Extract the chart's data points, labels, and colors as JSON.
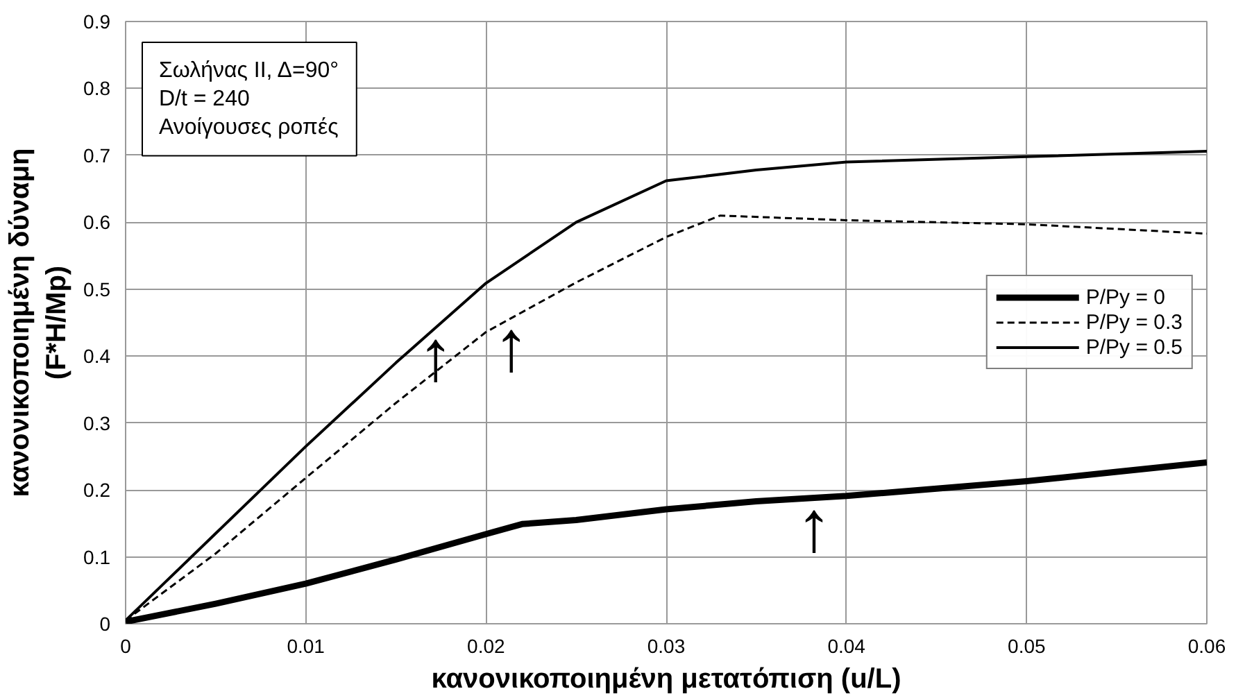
{
  "chart_data": {
    "type": "line",
    "xlabel": "κανονικοποιημένη μετατόπιση (u/L)",
    "ylabel": "κανονικοποιημένη δύναμη\n(F*H/Mp)",
    "annotations": [
      "Σωλήνας ΙΙ, Δ=90°\nD/t = 240\nΑνοίγουσες ροπές",
      {
        "text": "↑",
        "x": 0.0172,
        "y": 0.443
      },
      {
        "text": "↑",
        "x": 0.0214,
        "y": 0.457
      },
      {
        "text": "↑",
        "x": 0.0382,
        "y": 0.188
      }
    ],
    "series": [
      {
        "name": "P/Py = 0",
        "color": "#000000",
        "line_style": "solid",
        "x": [
          0,
          0.005,
          0.01,
          0.015,
          0.02,
          0.022,
          0.025,
          0.03,
          0.035,
          0.04,
          0.045,
          0.05,
          0.055,
          0.06
        ],
        "values": [
          0.003,
          0.03,
          0.06,
          0.096,
          0.134,
          0.149,
          0.155,
          0.171,
          0.183,
          0.191,
          0.202,
          0.213,
          0.227,
          0.241
        ]
      },
      {
        "name": "P/Py = 0.3",
        "color": "#000000",
        "line_style": "dashed",
        "x": [
          0,
          0.005,
          0.01,
          0.015,
          0.02,
          0.025,
          0.03,
          0.033,
          0.04,
          0.05,
          0.06
        ],
        "values": [
          0.005,
          0.105,
          0.218,
          0.33,
          0.436,
          0.51,
          0.578,
          0.61,
          0.603,
          0.597,
          0.583
        ]
      },
      {
        "name": "P/Py = 0.5",
        "color": "#000000",
        "line_style": "solid",
        "x": [
          0,
          0.005,
          0.01,
          0.015,
          0.02,
          0.025,
          0.03,
          0.035,
          0.04,
          0.05,
          0.06
        ],
        "values": [
          0.005,
          0.135,
          0.265,
          0.39,
          0.509,
          0.6,
          0.662,
          0.678,
          0.69,
          0.698,
          0.706
        ]
      }
    ],
    "xlim": [
      0,
      0.06
    ],
    "xticks": [
      0,
      0.01,
      0.02,
      0.03,
      0.04,
      0.05,
      0.06
    ],
    "ylim": [
      0,
      0.9
    ],
    "yticks": [
      0,
      0.1,
      0.2,
      0.3,
      0.4,
      0.5,
      0.6,
      0.7,
      0.8,
      0.9
    ],
    "grid": true,
    "legend": "right",
    "marker": "none"
  }
}
